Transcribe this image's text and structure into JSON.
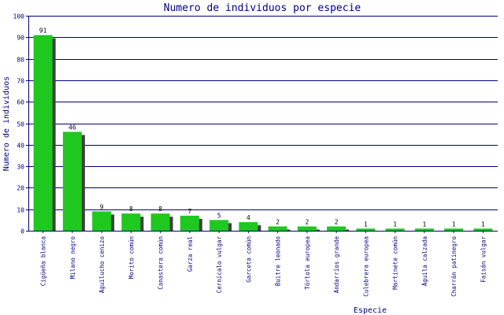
{
  "chart_data": {
    "type": "bar",
    "title": "Numero de individuos por especie",
    "xlabel": "Especie",
    "ylabel": "Numero de individuos",
    "ylim": [
      0,
      100
    ],
    "yticks": [
      0,
      10,
      20,
      30,
      40,
      50,
      60,
      70,
      80,
      90,
      100
    ],
    "grid": true,
    "categories": [
      "Cigüeña blanca",
      "Milano negro",
      "Aguilucho cenizo",
      "Morito común",
      "Canastera común",
      "Garza real",
      "Cernícalo vulgar",
      "Garceta común",
      "Buitre leonado",
      "Tórtola europea",
      "Andarríos grande",
      "Culebrera europea",
      "Martinete común",
      "Águila calzada",
      "Charrán patinegro",
      "Faisán vulgar"
    ],
    "values": [
      91,
      46,
      9,
      8,
      8,
      7,
      5,
      4,
      2,
      2,
      2,
      1,
      1,
      1,
      1,
      1
    ],
    "colors": {
      "bar": "#1ec81e",
      "shadow": "#404040",
      "axis": "#000080",
      "grid": "#000080",
      "text": "#000080",
      "value_label": "#000000"
    }
  }
}
